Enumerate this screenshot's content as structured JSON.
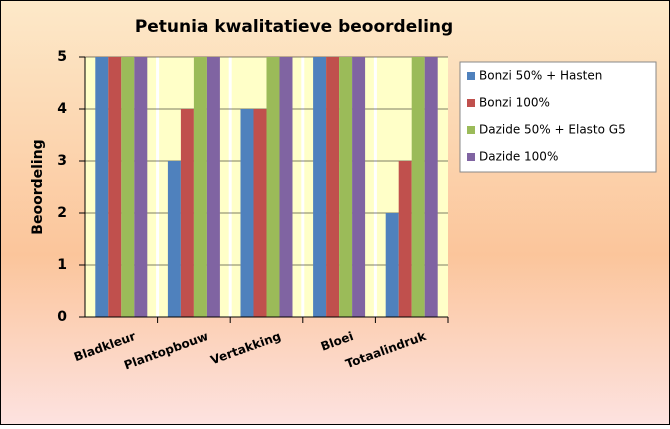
{
  "chart_data": {
    "type": "bar",
    "title": "Petunia kwalitatieve beoordeling",
    "y_label": "Beoordeling",
    "categories": [
      "Bladkleur",
      "Plantopbouw",
      "Vertakking",
      "Bloei",
      "Totaalindruk"
    ],
    "series": [
      {
        "name": "Bonzi 50% + Hasten",
        "color": "#4f81bd",
        "values": [
          5,
          3,
          4,
          5,
          2
        ]
      },
      {
        "name": "Bonzi 100%",
        "color": "#c0504d",
        "values": [
          5,
          4,
          4,
          5,
          3
        ]
      },
      {
        "name": "Dazide 50% + Elasto G5",
        "color": "#9bbb59",
        "values": [
          5,
          5,
          5,
          5,
          5
        ]
      },
      {
        "name": "Dazide 100%",
        "color": "#8064a2",
        "values": [
          5,
          5,
          5,
          5,
          5
        ]
      }
    ],
    "ylim": [
      0,
      5
    ],
    "yticks": [
      0,
      1,
      2,
      3,
      4,
      5
    ],
    "grid": true,
    "legend": "right"
  }
}
